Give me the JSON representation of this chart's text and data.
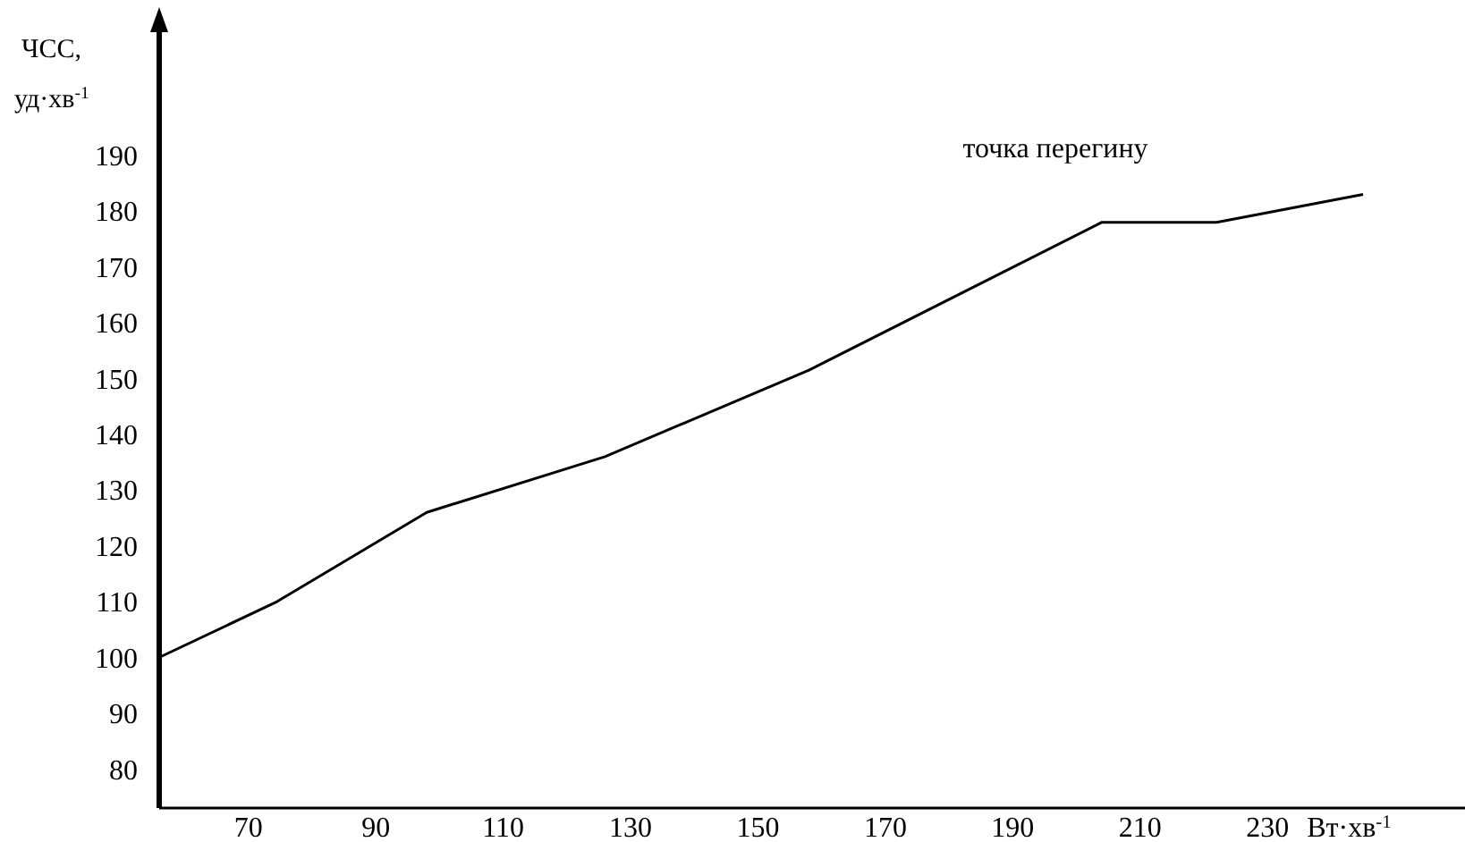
{
  "chart_data": {
    "type": "line",
    "ylabel": "ЧСС, уд·хв$^{-1}$",
    "xlabel": "Вт·хв$^{-1}$",
    "x": [
      56,
      74.5,
      98,
      126,
      158,
      204,
      222,
      245
    ],
    "series": [
      {
        "color": "#000000",
        "values": [
          100,
          110,
          126,
          136,
          151.5,
          178,
          178,
          183
        ]
      }
    ],
    "xlim": [
      56,
      261
    ],
    "xticks": [
      70,
      90,
      110,
      130,
      150,
      170,
      190,
      210,
      230
    ],
    "ylim": [
      73,
      214
    ],
    "yticks": [
      80,
      90,
      100,
      110,
      120,
      130,
      140,
      150,
      160,
      170,
      180,
      190
    ],
    "annotations": [
      "точка перегину"
    ]
  }
}
